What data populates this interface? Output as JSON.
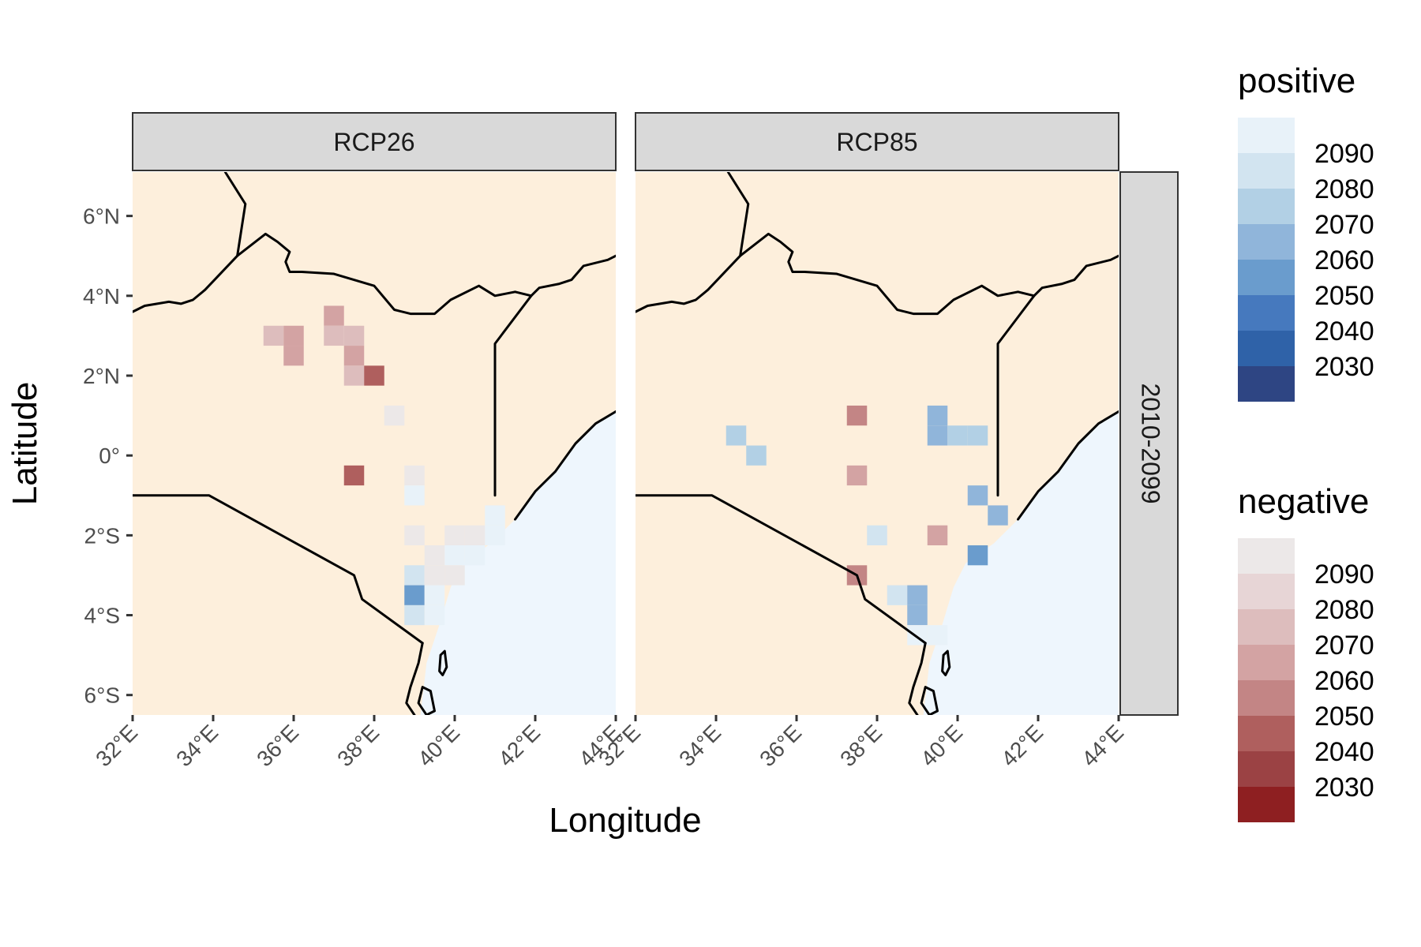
{
  "chart_data": {
    "type": "heatmap",
    "facet_cols": [
      "RCP26",
      "RCP85"
    ],
    "facet_row": "2010-2099",
    "xlabel": "Longitude",
    "ylabel": "Latitude",
    "x_ticks": [
      "32°E",
      "34°E",
      "36°E",
      "38°E",
      "40°E",
      "42°E",
      "44°E"
    ],
    "x_tick_values": [
      32,
      34,
      36,
      38,
      40,
      42,
      44
    ],
    "y_ticks": [
      "6°N",
      "4°N",
      "2°N",
      "0°",
      "2°S",
      "4°S",
      "6°S"
    ],
    "y_tick_values": [
      6,
      4,
      2,
      0,
      -2,
      -4,
      -6
    ],
    "xlim": [
      32,
      44
    ],
    "ylim": [
      -6.5,
      7.1
    ],
    "land_color": "#fdefdc",
    "ocean_color": "#eef6fd",
    "cell_size_deg": 0.5,
    "legends": [
      {
        "title": "positive",
        "labels": [
          "2090",
          "2080",
          "2070",
          "2060",
          "2050",
          "2040",
          "2030"
        ],
        "colors": [
          "#e8f2f9",
          "#d2e4f0",
          "#b2d0e5",
          "#90b5da",
          "#6a9ccd",
          "#4679be",
          "#2f62a8",
          "#2e4583"
        ]
      },
      {
        "title": "negative",
        "labels": [
          "2090",
          "2080",
          "2070",
          "2060",
          "2050",
          "2040",
          "2030"
        ],
        "colors": [
          "#ece8e8",
          "#e7d5d6",
          "#ddbdbd",
          "#d3a3a3",
          "#c38585",
          "#af5f5e",
          "#9b4244",
          "#8e1f21"
        ]
      }
    ],
    "panels": [
      {
        "name": "RCP26",
        "cells": [
          {
            "lon": 35.5,
            "lat": 3.0,
            "sign": "negative",
            "year": 2070
          },
          {
            "lon": 36.0,
            "lat": 3.0,
            "sign": "negative",
            "year": 2060
          },
          {
            "lon": 36.0,
            "lat": 2.5,
            "sign": "negative",
            "year": 2060
          },
          {
            "lon": 37.0,
            "lat": 3.5,
            "sign": "negative",
            "year": 2060
          },
          {
            "lon": 37.0,
            "lat": 3.0,
            "sign": "negative",
            "year": 2070
          },
          {
            "lon": 37.5,
            "lat": 3.0,
            "sign": "negative",
            "year": 2070
          },
          {
            "lon": 37.5,
            "lat": 2.5,
            "sign": "negative",
            "year": 2060
          },
          {
            "lon": 37.5,
            "lat": 2.0,
            "sign": "negative",
            "year": 2070
          },
          {
            "lon": 38.0,
            "lat": 2.0,
            "sign": "negative",
            "year": 2040
          },
          {
            "lon": 37.5,
            "lat": -0.5,
            "sign": "negative",
            "year": 2040
          },
          {
            "lon": 38.5,
            "lat": 1.0,
            "sign": "negative",
            "year": 2090
          },
          {
            "lon": 39.0,
            "lat": -0.5,
            "sign": "negative",
            "year": 2090
          },
          {
            "lon": 39.0,
            "lat": -1.0,
            "sign": "positive",
            "year": 2090
          },
          {
            "lon": 39.0,
            "lat": -2.0,
            "sign": "negative",
            "year": 2090
          },
          {
            "lon": 40.0,
            "lat": -2.0,
            "sign": "negative",
            "year": 2090
          },
          {
            "lon": 40.5,
            "lat": -2.0,
            "sign": "negative",
            "year": 2090
          },
          {
            "lon": 41.0,
            "lat": -2.0,
            "sign": "positive",
            "year": 2090
          },
          {
            "lon": 41.0,
            "lat": -1.5,
            "sign": "positive",
            "year": 2090
          },
          {
            "lon": 39.5,
            "lat": -2.5,
            "sign": "negative",
            "year": 2090
          },
          {
            "lon": 40.0,
            "lat": -2.5,
            "sign": "positive",
            "year": 2090
          },
          {
            "lon": 40.5,
            "lat": -2.5,
            "sign": "positive",
            "year": 2090
          },
          {
            "lon": 39.0,
            "lat": -3.0,
            "sign": "positive",
            "year": 2080
          },
          {
            "lon": 39.5,
            "lat": -3.0,
            "sign": "negative",
            "year": 2090
          },
          {
            "lon": 40.0,
            "lat": -3.0,
            "sign": "negative",
            "year": 2090
          },
          {
            "lon": 39.0,
            "lat": -3.5,
            "sign": "positive",
            "year": 2050
          },
          {
            "lon": 39.5,
            "lat": -3.5,
            "sign": "positive",
            "year": 2090
          },
          {
            "lon": 39.0,
            "lat": -4.0,
            "sign": "positive",
            "year": 2080
          },
          {
            "lon": 39.5,
            "lat": -4.0,
            "sign": "positive",
            "year": 2090
          }
        ]
      },
      {
        "name": "RCP85",
        "cells": [
          {
            "lon": 34.5,
            "lat": 0.5,
            "sign": "positive",
            "year": 2070
          },
          {
            "lon": 35.0,
            "lat": 0.0,
            "sign": "positive",
            "year": 2070
          },
          {
            "lon": 37.5,
            "lat": 1.0,
            "sign": "negative",
            "year": 2050
          },
          {
            "lon": 37.5,
            "lat": -0.5,
            "sign": "negative",
            "year": 2060
          },
          {
            "lon": 37.5,
            "lat": -3.0,
            "sign": "negative",
            "year": 2050
          },
          {
            "lon": 38.0,
            "lat": -2.0,
            "sign": "positive",
            "year": 2080
          },
          {
            "lon": 39.5,
            "lat": 1.0,
            "sign": "positive",
            "year": 2060
          },
          {
            "lon": 39.5,
            "lat": 0.5,
            "sign": "positive",
            "year": 2060
          },
          {
            "lon": 40.0,
            "lat": 0.5,
            "sign": "positive",
            "year": 2070
          },
          {
            "lon": 40.5,
            "lat": 0.5,
            "sign": "positive",
            "year": 2070
          },
          {
            "lon": 39.5,
            "lat": -2.0,
            "sign": "negative",
            "year": 2060
          },
          {
            "lon": 40.5,
            "lat": -1.0,
            "sign": "positive",
            "year": 2060
          },
          {
            "lon": 41.0,
            "lat": -1.5,
            "sign": "positive",
            "year": 2060
          },
          {
            "lon": 40.5,
            "lat": -2.5,
            "sign": "positive",
            "year": 2050
          },
          {
            "lon": 38.5,
            "lat": -3.5,
            "sign": "positive",
            "year": 2080
          },
          {
            "lon": 39.0,
            "lat": -3.5,
            "sign": "positive",
            "year": 2060
          },
          {
            "lon": 39.0,
            "lat": -4.0,
            "sign": "positive",
            "year": 2060
          },
          {
            "lon": 39.0,
            "lat": -4.5,
            "sign": "positive",
            "year": 2090
          },
          {
            "lon": 39.5,
            "lat": -4.5,
            "sign": "positive",
            "year": 2090
          }
        ]
      }
    ],
    "borders": {
      "kenya": [
        [
          38.0,
          4.25
        ],
        [
          37.0,
          4.55
        ],
        [
          36.2,
          4.6
        ],
        [
          35.9,
          4.6
        ],
        [
          35.8,
          4.85
        ],
        [
          35.9,
          5.1
        ],
        [
          35.6,
          5.3
        ],
        [
          35.3,
          5.5
        ],
        [
          35.1,
          5.8
        ],
        [
          34.8,
          6.3
        ],
        [
          34.5,
          6.9
        ],
        [
          34.3,
          7.2
        ],
        [
          34.2,
          7.2
        ],
        [
          34.0,
          7.2
        ],
        [
          34.0,
          6.2
        ],
        [
          33.8,
          4.6
        ],
        [
          33.8,
          4.3
        ],
        [
          33.95,
          4.2
        ],
        [
          34.05,
          3.95
        ],
        [
          34.2,
          3.6
        ],
        [
          34.15,
          3.3
        ],
        [
          34.35,
          3.0
        ],
        [
          34.5,
          2.5
        ],
        [
          34.5,
          1.6
        ],
        [
          34.3,
          1.2
        ],
        [
          34.0,
          1.0
        ],
        [
          33.9,
          0.5
        ],
        [
          33.9,
          0.0
        ],
        [
          33.95,
          -1.0
        ],
        [
          35.0,
          -1.6
        ],
        [
          36.0,
          -2.1
        ],
        [
          37.0,
          -2.7
        ],
        [
          37.5,
          -3.0
        ],
        [
          37.65,
          -3.35
        ],
        [
          37.7,
          -3.6
        ],
        [
          38.5,
          -4.1
        ],
        [
          39.2,
          -4.65
        ],
        [
          39.4,
          -4.2
        ],
        [
          39.6,
          -3.6
        ],
        [
          39.7,
          -3.2
        ],
        [
          39.9,
          -2.9
        ],
        [
          40.0,
          -2.6
        ],
        [
          40.2,
          -2.4
        ],
        [
          40.7,
          -2.2
        ],
        [
          41.0,
          -2.0
        ],
        [
          41.3,
          -1.7
        ],
        [
          41.5,
          -1.6
        ],
        [
          41.0,
          -1.0
        ],
        [
          41.0,
          2.8
        ],
        [
          41.5,
          3.5
        ],
        [
          41.9,
          4.0
        ],
        [
          41.5,
          4.1
        ],
        [
          41.0,
          4.0
        ],
        [
          40.6,
          4.3
        ],
        [
          40.2,
          4.1
        ],
        [
          39.8,
          3.9
        ],
        [
          39.5,
          3.5
        ],
        [
          38.9,
          3.55
        ],
        [
          38.5,
          3.6
        ],
        [
          38.0,
          3.6
        ],
        [
          37.0,
          4.0
        ],
        [
          36.2,
          4.5
        ]
      ],
      "lines": [
        [
          [
            32.0,
            3.6
          ],
          [
            32.3,
            3.75
          ],
          [
            32.9,
            3.85
          ],
          [
            33.2,
            3.8
          ],
          [
            33.5,
            3.9
          ],
          [
            33.8,
            4.15
          ],
          [
            34.6,
            5.0
          ],
          [
            35.3,
            5.55
          ],
          [
            35.6,
            5.35
          ],
          [
            35.9,
            5.1
          ],
          [
            35.8,
            4.85
          ],
          [
            35.9,
            4.6
          ],
          [
            36.2,
            4.6
          ],
          [
            37.0,
            4.55
          ],
          [
            38.0,
            4.25
          ],
          [
            38.5,
            3.65
          ],
          [
            38.9,
            3.55
          ],
          [
            39.5,
            3.55
          ],
          [
            39.9,
            3.9
          ],
          [
            40.6,
            4.25
          ],
          [
            41.0,
            4.0
          ],
          [
            41.5,
            4.1
          ],
          [
            41.9,
            4.0
          ],
          [
            42.1,
            4.2
          ],
          [
            42.6,
            4.3
          ],
          [
            42.9,
            4.4
          ],
          [
            43.2,
            4.75
          ],
          [
            43.8,
            4.9
          ],
          [
            44.0,
            5.0
          ]
        ],
        [
          [
            32.0,
            -1.0
          ],
          [
            33.9,
            -1.0
          ],
          [
            37.5,
            -3.0
          ],
          [
            37.7,
            -3.6
          ],
          [
            39.2,
            -4.7
          ]
        ],
        [
          [
            41.0,
            -1.0
          ],
          [
            41.0,
            2.8
          ],
          [
            41.9,
            4.0
          ]
        ],
        [
          [
            34.6,
            5.0
          ],
          [
            34.8,
            6.3
          ],
          [
            34.3,
            7.1
          ]
        ],
        [
          [
            41.5,
            -1.6
          ],
          [
            42.0,
            -0.9
          ],
          [
            42.5,
            -0.4
          ],
          [
            43.0,
            0.3
          ],
          [
            43.5,
            0.8
          ],
          [
            44.0,
            1.1
          ]
        ],
        [
          [
            39.2,
            -4.7
          ],
          [
            39.1,
            -5.2
          ],
          [
            38.9,
            -5.8
          ],
          [
            38.8,
            -6.2
          ],
          [
            39.0,
            -6.5
          ]
        ]
      ]
    }
  }
}
